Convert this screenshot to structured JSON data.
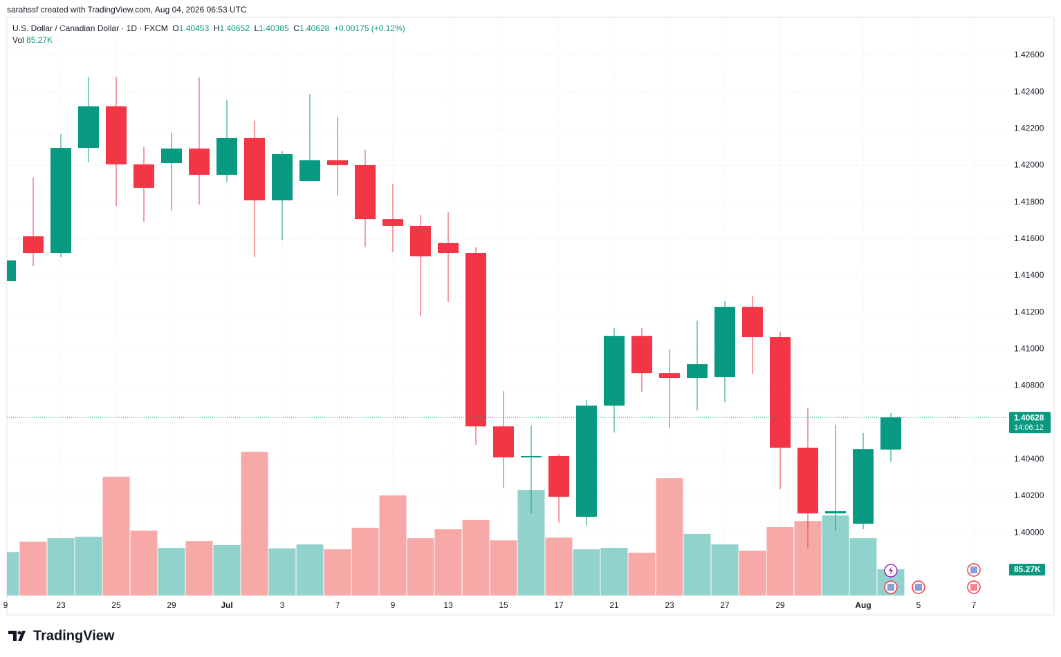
{
  "header": {
    "credit": "sarahssf created with TradingView.com, Aug 04, 2026 06:53 UTC"
  },
  "chart_data": {
    "type": "candlestick",
    "title": "U.S. Dollar / Canadian Dollar · 1D · FXCM",
    "legend_labels": {
      "open": "O",
      "high": "H",
      "low": "L",
      "close": "C",
      "volume": "Vol"
    },
    "change": "+0.00175 (+0.12%)",
    "countdown": "14:06:12",
    "volume_label": "85.27K",
    "categories": [
      "9",
      null,
      "23",
      null,
      "25",
      null,
      "29",
      null,
      "Jul",
      null,
      "3",
      null,
      "7",
      null,
      "9",
      null,
      "13",
      null,
      "15",
      null,
      "17",
      null,
      "21",
      null,
      "23",
      null,
      "27",
      null,
      "29",
      null,
      null,
      "Aug",
      null,
      "5",
      null,
      "7"
    ],
    "open": [
      1.4137,
      1.41614,
      1.41524,
      1.42096,
      1.42322,
      1.42006,
      1.42013,
      1.42092,
      1.41949,
      1.42149,
      1.4181,
      1.41915,
      1.42028,
      1.42002,
      1.41708,
      1.41671,
      1.41577,
      1.41524,
      1.40579,
      1.4041,
      1.40418,
      1.40087,
      1.40692,
      1.41072,
      1.40869,
      1.40843,
      1.40847,
      1.4123,
      1.41065,
      1.40463,
      1.40105,
      1.40049,
      1.40453,
      null,
      null,
      null
    ],
    "high": [
      1.41483,
      1.41934,
      1.42171,
      1.42483,
      1.42483,
      1.421,
      1.42179,
      1.4248,
      1.42355,
      1.42243,
      1.42077,
      1.42389,
      1.42265,
      1.42085,
      1.419,
      1.41731,
      1.41746,
      1.41554,
      1.40771,
      1.40583,
      1.40429,
      1.40722,
      1.41114,
      1.41114,
      1.40997,
      1.41155,
      1.41261,
      1.41291,
      1.41095,
      1.40681,
      1.40587,
      1.40542,
      1.40652,
      null,
      null,
      null
    ],
    "low": [
      1.4137,
      1.41452,
      1.41501,
      1.42017,
      1.4178,
      1.41693,
      1.41757,
      1.41787,
      1.41908,
      1.41501,
      1.41592,
      1.41915,
      1.41836,
      1.41554,
      1.41528,
      1.41178,
      1.41257,
      1.40478,
      1.40245,
      1.40105,
      1.40056,
      1.40038,
      1.40546,
      1.40768,
      1.40572,
      1.40666,
      1.40711,
      1.40865,
      1.40237,
      1.39913,
      1.40011,
      1.40019,
      1.40385,
      null,
      null,
      null
    ],
    "close": [
      1.41483,
      1.41524,
      1.42096,
      1.42322,
      1.42006,
      1.41878,
      1.42092,
      1.41949,
      1.42149,
      1.4181,
      1.42062,
      1.42028,
      1.42002,
      1.41708,
      1.41671,
      1.41505,
      1.41524,
      1.40579,
      1.4041,
      1.40418,
      1.40196,
      1.40692,
      1.41072,
      1.40869,
      1.40843,
      1.40918,
      1.4123,
      1.41065,
      1.40463,
      1.40105,
      1.40117,
      1.40455,
      1.40628,
      null,
      null,
      null
    ],
    "volume": [
      141,
      175,
      186,
      191,
      386,
      211,
      155,
      177,
      164,
      467,
      153,
      166,
      150,
      220,
      325,
      186,
      215,
      245,
      179,
      343,
      188,
      150,
      155,
      139,
      381,
      200,
      166,
      146,
      222,
      242,
      260,
      186,
      85.27,
      null,
      null,
      null
    ],
    "ylim": [
      1.39658,
      1.42807
    ],
    "yticks": [
      {
        "value": 1.4,
        "label": "1.40000"
      },
      {
        "value": 1.402,
        "label": "1.40200"
      },
      {
        "value": 1.404,
        "label": "1.40400"
      },
      {
        "value": 1.406,
        "label": "1.40600"
      },
      {
        "value": 1.408,
        "label": "1.40800"
      },
      {
        "value": 1.41,
        "label": "1.41000"
      },
      {
        "value": 1.412,
        "label": "1.41200"
      },
      {
        "value": 1.414,
        "label": "1.41400"
      },
      {
        "value": 1.416,
        "label": "1.41600"
      },
      {
        "value": 1.418,
        "label": "1.41800"
      },
      {
        "value": 1.42,
        "label": "1.42000"
      },
      {
        "value": 1.422,
        "label": "1.42200"
      },
      {
        "value": 1.424,
        "label": "1.42400"
      },
      {
        "value": 1.426,
        "label": "1.42600"
      }
    ],
    "grid": true,
    "up_color": "#089981",
    "down_color": "#f23645",
    "volume_up_color": "#92d2cc",
    "volume_down_color": "#f7a9a7"
  },
  "footer": {
    "brand": "TradingView"
  }
}
